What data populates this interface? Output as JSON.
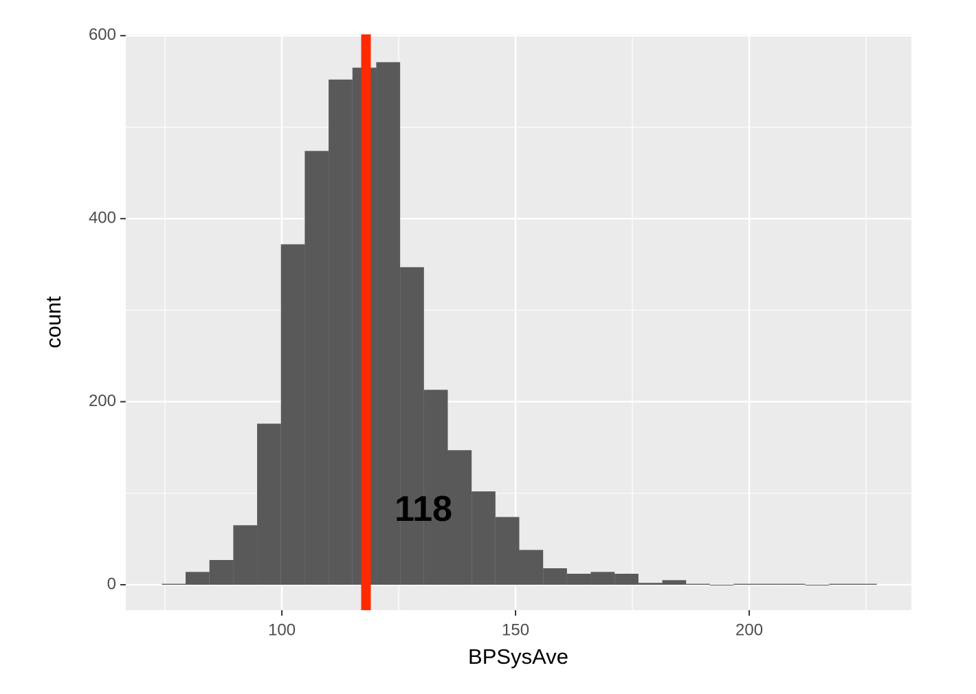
{
  "chart_data": {
    "type": "histogram",
    "x_label": "BPSysAve",
    "y_label": "count",
    "bins": [
      74.3,
      79.4,
      84.5,
      89.6,
      94.7,
      99.8,
      104.9,
      110.0,
      115.1,
      120.2,
      125.3,
      130.4,
      135.5,
      140.6,
      145.7,
      150.8,
      155.9,
      161.0,
      166.1,
      171.2,
      176.3,
      181.4,
      186.5,
      191.6,
      196.7,
      201.8,
      206.9,
      212.0,
      217.1,
      222.2,
      227.3
    ],
    "values": [
      1,
      14,
      27,
      65,
      176,
      372,
      474,
      552,
      565,
      571,
      347,
      213,
      147,
      102,
      74,
      38,
      18,
      12,
      14,
      12,
      2,
      5,
      1,
      0,
      1,
      1,
      1,
      0,
      1,
      1
    ],
    "color": "#595959",
    "xlim": [
      66.6,
      234.7
    ],
    "ylim": [
      -27.8,
      601.4
    ],
    "xticks": [
      100,
      150,
      200
    ],
    "yticks": [
      0,
      200,
      400,
      600
    ],
    "x_minor_grid": [
      75,
      125,
      175,
      225
    ],
    "y_minor_grid": [
      100,
      300,
      500
    ],
    "grid": true,
    "vline": {
      "value": 118,
      "color": "#ff2a00"
    },
    "annotations": [
      {
        "text": "118",
        "x": 130.3,
        "y": 80
      }
    ]
  }
}
